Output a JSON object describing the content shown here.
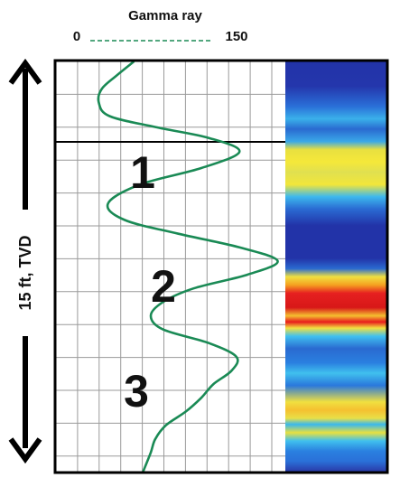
{
  "chart_data": {
    "type": "line",
    "curve_label": "Gamma ray",
    "x_min_label": "0",
    "x_max_label": "150",
    "xlim": [
      0,
      150
    ],
    "ylim": [
      0,
      15
    ],
    "depth_label": "15 ft, TVD",
    "zone_labels": [
      "1",
      "2",
      "3"
    ],
    "curve_color": "#1a8a55",
    "series": [
      {
        "depth": [
          0.0,
          0.5,
          1.0,
          1.5,
          2.0,
          2.4,
          2.8,
          3.3,
          3.9,
          4.5,
          5.2,
          5.8,
          6.3,
          6.8,
          7.3,
          7.8,
          8.3,
          8.8,
          9.3,
          9.8,
          10.3,
          10.8,
          11.3,
          11.8,
          12.3,
          12.8,
          13.3,
          13.8,
          14.3,
          15.0
        ],
        "gamma": [
          51,
          40,
          30,
          28,
          35,
          65,
          100,
          120,
          95,
          55,
          34,
          45,
          80,
          120,
          145,
          125,
          90,
          70,
          62,
          70,
          100,
          118,
          115,
          103,
          95,
          85,
          72,
          65,
          62,
          57
        ]
      }
    ],
    "image_track_colors": [
      "#2233a8",
      "#2a7fe0",
      "#40c0f0",
      "#f0e830",
      "#f5b020",
      "#e62020",
      "#b01818"
    ]
  }
}
